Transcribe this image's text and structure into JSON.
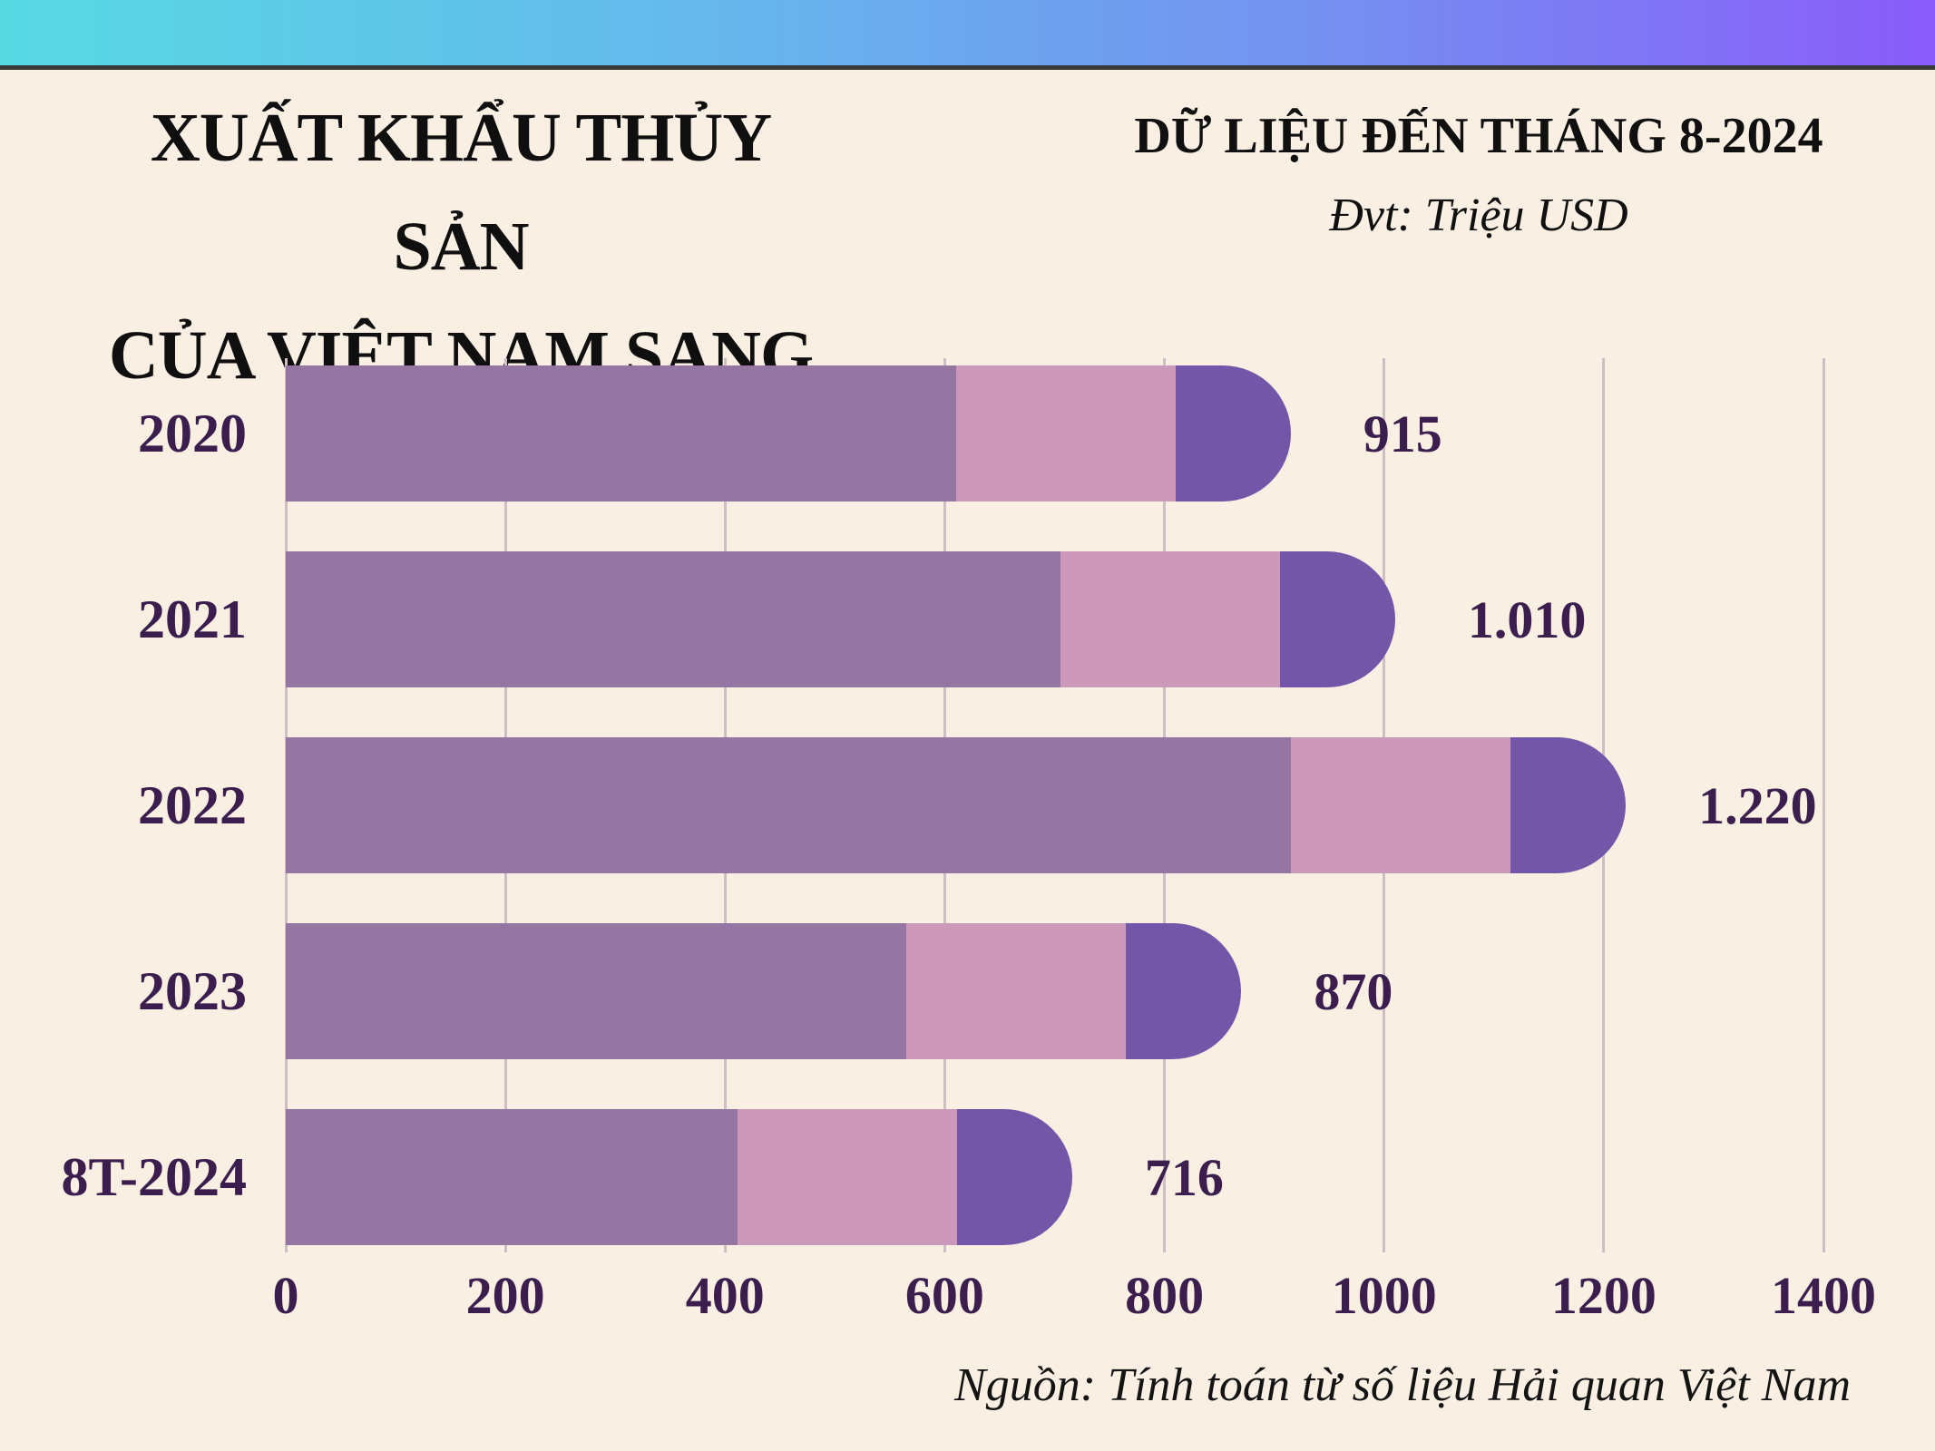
{
  "banner": {
    "gradient": [
      "#57D9E2",
      "#64BBEC",
      "#7493F0",
      "#8A5CFA"
    ],
    "border_color": "#3A3A3A"
  },
  "header": {
    "title_line1": "XUẤT KHẨU THỦY SẢN",
    "title_line2": "CỦA VIỆT NAM SANG EU",
    "subtitle": "DỮ LIỆU ĐẾN THÁNG 8-2024",
    "unit": "Đvt: Triệu USD"
  },
  "chart_data": {
    "type": "bar",
    "orientation": "horizontal",
    "title": "Xuất khẩu thủy sản của Việt Nam sang EU",
    "categories": [
      "2020",
      "2021",
      "2022",
      "2023",
      "8T-2024"
    ],
    "values": [
      915,
      1010,
      1220,
      870,
      716
    ],
    "value_labels": [
      "915",
      "1.010",
      "1.220",
      "870",
      "716"
    ],
    "x_ticks": [
      0,
      200,
      400,
      600,
      800,
      1000,
      1200,
      1400
    ],
    "xlim": [
      0,
      1400
    ],
    "xlabel": "",
    "ylabel": "",
    "unit": "Triệu USD",
    "grid": true,
    "legend": false,
    "segment_design": {
      "mid_units": 200,
      "cap_units": 105
    }
  },
  "colors": {
    "background": "#F9EFE3",
    "bar_main": "#9576A2",
    "bar_mid": "#CC99BB",
    "bar_cap": "#7456A8",
    "ink": "#3B1E4E",
    "gridline": "#CFBEC4"
  },
  "source": "Nguồn: Tính toán từ số liệu Hải quan Việt Nam"
}
